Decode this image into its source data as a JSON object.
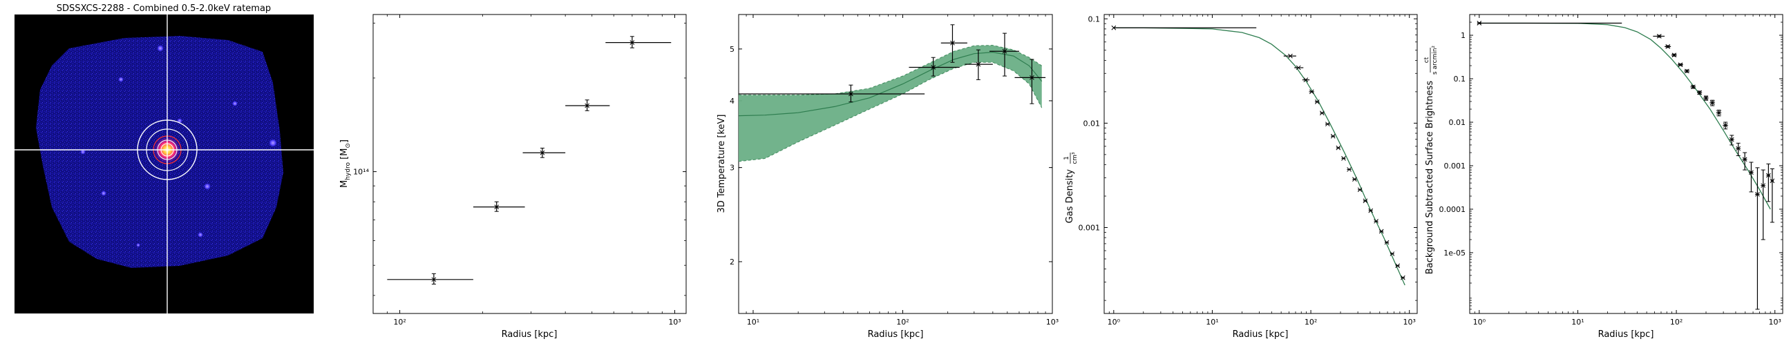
{
  "colors": {
    "band_fill": "#6aaf86",
    "band_edge": "#3f8a5c",
    "model_line": "#2e7d4f",
    "data_marks": "#000000",
    "image_bg": "#000000",
    "image_emission": "#1a18c8",
    "crosshair": "#ffffff"
  },
  "chart_data": [
    {
      "id": "ratemap",
      "type": "image",
      "title": "SDSSXCS-2288 - Combined 0.5-2.0keV ratemap",
      "description_elements": [
        "crosshair",
        "annular regions",
        "bright central source"
      ]
    },
    {
      "id": "mass",
      "type": "scatter",
      "xlabel": "Radius [kpc]",
      "ylabel_main": "M",
      "ylabel_sub": "hydro",
      "ylabel_unit": " [M",
      "ylabel_unit_sub": "⊙",
      "ylabel_end": "]",
      "x_scale": "log",
      "y_scale": "log",
      "xlim": [
        80,
        1100
      ],
      "ylim": [
        35000000000000.0,
        320000000000000.0
      ],
      "x_tick_labels": [
        "10²",
        "10³"
      ],
      "x_ticks": [
        100,
        1000
      ],
      "y_tick_labels": [
        "10¹⁴"
      ],
      "y_ticks": [
        100000000000000.0
      ],
      "points": [
        {
          "x": 133,
          "xlo": 90,
          "xhi": 185,
          "y": 45000000000000.0,
          "ylo": 43500000000000.0,
          "yhi": 47000000000000.0
        },
        {
          "x": 225,
          "xlo": 185,
          "xhi": 285,
          "y": 77000000000000.0,
          "ylo": 74500000000000.0,
          "yhi": 80000000000000.0
        },
        {
          "x": 330,
          "xlo": 280,
          "xhi": 400,
          "y": 115000000000000.0,
          "ylo": 111000000000000.0,
          "yhi": 119000000000000.0
        },
        {
          "x": 480,
          "xlo": 400,
          "xhi": 580,
          "y": 163000000000000.0,
          "ylo": 157000000000000.0,
          "yhi": 170000000000000.0
        },
        {
          "x": 700,
          "xlo": 560,
          "xhi": 970,
          "y": 260000000000000.0,
          "ylo": 250000000000000.0,
          "yhi": 272000000000000.0
        }
      ]
    },
    {
      "id": "temperature",
      "type": "line",
      "xlabel": "Radius [kpc]",
      "ylabel": "3D Temperature [keV]",
      "x_scale": "log",
      "y_scale": "log",
      "xlim": [
        8,
        1000
      ],
      "ylim": [
        1.6,
        5.8
      ],
      "x_tick_labels": [
        "10¹",
        "10²",
        "10³"
      ],
      "x_ticks": [
        10,
        100,
        1000
      ],
      "y_tick_labels": [
        "2",
        "3",
        "4",
        "5"
      ],
      "y_ticks": [
        2,
        3,
        4,
        5
      ],
      "model": {
        "x": [
          8,
          12,
          20,
          35,
          60,
          100,
          150,
          220,
          300,
          400,
          550,
          700,
          850
        ],
        "y": [
          3.75,
          3.76,
          3.8,
          3.9,
          4.05,
          4.3,
          4.55,
          4.78,
          4.9,
          4.93,
          4.85,
          4.65,
          4.35
        ]
      },
      "band_upper": {
        "x": [
          8,
          12,
          20,
          35,
          60,
          100,
          150,
          220,
          300,
          400,
          550,
          700,
          850
        ],
        "y": [
          4.1,
          4.1,
          4.1,
          4.12,
          4.22,
          4.45,
          4.7,
          4.95,
          5.07,
          5.08,
          4.98,
          4.82,
          4.65
        ]
      },
      "band_lower": {
        "x": [
          8,
          12,
          20,
          35,
          60,
          100,
          150,
          220,
          300,
          400,
          550,
          700,
          850
        ],
        "y": [
          3.08,
          3.12,
          3.35,
          3.6,
          3.86,
          4.12,
          4.38,
          4.6,
          4.72,
          4.72,
          4.55,
          4.3,
          3.88
        ]
      },
      "points": [
        {
          "x": 45,
          "xlo": 8,
          "xhi": 140,
          "y": 4.12,
          "ylo": 3.98,
          "yhi": 4.28
        },
        {
          "x": 160,
          "xlo": 110,
          "xhi": 240,
          "y": 4.62,
          "ylo": 4.45,
          "yhi": 4.82
        },
        {
          "x": 215,
          "xlo": 180,
          "xhi": 270,
          "y": 5.13,
          "ylo": 4.72,
          "yhi": 5.55
        },
        {
          "x": 320,
          "xlo": 260,
          "xhi": 400,
          "y": 4.68,
          "ylo": 4.38,
          "yhi": 4.98
        },
        {
          "x": 480,
          "xlo": 380,
          "xhi": 600,
          "y": 4.95,
          "ylo": 4.45,
          "yhi": 5.35
        },
        {
          "x": 730,
          "xlo": 560,
          "xhi": 900,
          "y": 4.42,
          "ylo": 3.95,
          "yhi": 4.78
        }
      ]
    },
    {
      "id": "density",
      "type": "line",
      "xlabel": "Radius [kpc]",
      "ylabel": "Gas Density",
      "ylabel_unit_num": "1",
      "ylabel_unit_den": "cm³",
      "x_scale": "log",
      "y_scale": "log",
      "xlim": [
        0.8,
        1200
      ],
      "ylim": [
        0.00015,
        0.11
      ],
      "x_tick_labels": [
        "10⁰",
        "10¹",
        "10²",
        "10³"
      ],
      "x_ticks": [
        1,
        10,
        100,
        1000
      ],
      "y_tick_labels": [
        "0.1",
        "0.01",
        "0.001"
      ],
      "y_ticks": [
        0.1,
        0.01,
        0.001
      ],
      "model": {
        "x": [
          1,
          2,
          5,
          10,
          20,
          30,
          40,
          55,
          70,
          90,
          120,
          160,
          220,
          300,
          400,
          550,
          700,
          900
        ],
        "y": [
          0.082,
          0.082,
          0.081,
          0.08,
          0.074,
          0.066,
          0.057,
          0.045,
          0.035,
          0.025,
          0.016,
          0.0095,
          0.0052,
          0.0028,
          0.0015,
          0.0008,
          0.00048,
          0.00028
        ]
      },
      "points": [
        {
          "x": 1.0,
          "xlo": 1.0,
          "xhi": 28,
          "y": 0.082
        },
        {
          "x": 62,
          "xlo": 53,
          "xhi": 71,
          "y": 0.044
        },
        {
          "x": 75,
          "xlo": 68,
          "xhi": 84,
          "y": 0.034
        },
        {
          "x": 89,
          "xlo": 82,
          "xhi": 97,
          "y": 0.026
        },
        {
          "x": 102,
          "xlo": 96,
          "xhi": 108,
          "y": 0.02
        },
        {
          "x": 116,
          "xlo": 110,
          "xhi": 122,
          "y": 0.016
        },
        {
          "x": 130,
          "xlo": 124,
          "xhi": 137,
          "y": 0.0125
        },
        {
          "x": 148,
          "xlo": 140,
          "xhi": 156,
          "y": 0.0098
        },
        {
          "x": 168,
          "xlo": 160,
          "xhi": 176,
          "y": 0.0075
        },
        {
          "x": 190,
          "xlo": 181,
          "xhi": 199,
          "y": 0.0058
        },
        {
          "x": 215,
          "xlo": 205,
          "xhi": 225,
          "y": 0.0046
        },
        {
          "x": 245,
          "xlo": 233,
          "xhi": 257,
          "y": 0.0036
        },
        {
          "x": 278,
          "xlo": 265,
          "xhi": 291,
          "y": 0.0029
        },
        {
          "x": 315,
          "xlo": 300,
          "xhi": 330,
          "y": 0.0023
        },
        {
          "x": 357,
          "xlo": 340,
          "xhi": 374,
          "y": 0.0018
        },
        {
          "x": 405,
          "xlo": 386,
          "xhi": 424,
          "y": 0.00145
        },
        {
          "x": 460,
          "xlo": 438,
          "xhi": 482,
          "y": 0.00115
        },
        {
          "x": 520,
          "xlo": 496,
          "xhi": 545,
          "y": 0.00092
        },
        {
          "x": 590,
          "xlo": 562,
          "xhi": 618,
          "y": 0.00072
        },
        {
          "x": 670,
          "xlo": 640,
          "xhi": 700,
          "y": 0.00056
        },
        {
          "x": 760,
          "xlo": 725,
          "xhi": 795,
          "y": 0.00043
        },
        {
          "x": 860,
          "xlo": 820,
          "xhi": 900,
          "y": 0.00033
        }
      ]
    },
    {
      "id": "surface_brightness",
      "type": "line",
      "xlabel": "Radius [kpc]",
      "ylabel": "Background Subtracted Surface Brightness",
      "ylabel_unit_num": "ct",
      "ylabel_unit_den": "s arcmin²",
      "x_scale": "log",
      "y_scale": "log",
      "xlim": [
        0.8,
        1200
      ],
      "ylim": [
        4e-07,
        3.0
      ],
      "x_tick_labels": [
        "10⁰",
        "10¹",
        "10²",
        "10³"
      ],
      "x_ticks": [
        1,
        10,
        100,
        1000
      ],
      "y_tick_labels": [
        "1",
        "0.1",
        "0.01",
        "0.001",
        "0.0001",
        "1e-05"
      ],
      "y_ticks": [
        1,
        0.1,
        0.01,
        0.001,
        0.0001,
        1e-05
      ],
      "model": {
        "x": [
          1,
          3,
          10,
          20,
          30,
          40,
          55,
          70,
          90,
          120,
          160,
          220,
          300,
          400,
          550,
          700,
          900
        ],
        "y": [
          1.9,
          1.9,
          1.88,
          1.75,
          1.5,
          1.2,
          0.8,
          0.5,
          0.28,
          0.13,
          0.055,
          0.02,
          0.0065,
          0.0022,
          0.0007,
          0.00028,
          0.0001
        ]
      },
      "points": [
        {
          "x": 1.0,
          "xlo": 1.0,
          "xhi": 28,
          "y": 1.9,
          "ylo": 1.85,
          "yhi": 1.95
        },
        {
          "x": 67,
          "xlo": 58,
          "xhi": 76,
          "y": 0.95,
          "ylo": 0.9,
          "yhi": 1.0
        },
        {
          "x": 82,
          "xlo": 76,
          "xhi": 88,
          "y": 0.55,
          "ylo": 0.52,
          "yhi": 0.58
        },
        {
          "x": 95,
          "xlo": 89,
          "xhi": 101,
          "y": 0.35,
          "ylo": 0.33,
          "yhi": 0.37
        },
        {
          "x": 110,
          "xlo": 103,
          "xhi": 117,
          "y": 0.21,
          "ylo": 0.2,
          "yhi": 0.22
        },
        {
          "x": 128,
          "xlo": 120,
          "xhi": 136,
          "y": 0.15,
          "ylo": 0.14,
          "yhi": 0.16
        },
        {
          "x": 148,
          "xlo": 139,
          "xhi": 157,
          "y": 0.065,
          "ylo": 0.06,
          "yhi": 0.07
        },
        {
          "x": 172,
          "xlo": 162,
          "xhi": 182,
          "y": 0.048,
          "ylo": 0.044,
          "yhi": 0.052
        },
        {
          "x": 200,
          "xlo": 188,
          "xhi": 212,
          "y": 0.036,
          "ylo": 0.032,
          "yhi": 0.04
        },
        {
          "x": 232,
          "xlo": 218,
          "xhi": 246,
          "y": 0.028,
          "ylo": 0.024,
          "yhi": 0.032
        },
        {
          "x": 270,
          "xlo": 254,
          "xhi": 286,
          "y": 0.0165,
          "ylo": 0.014,
          "yhi": 0.019
        },
        {
          "x": 315,
          "xlo": 296,
          "xhi": 334,
          "y": 0.0085,
          "ylo": 0.007,
          "yhi": 0.01
        },
        {
          "x": 365,
          "xlo": 345,
          "xhi": 385,
          "y": 0.004,
          "ylo": 0.003,
          "yhi": 0.005
        },
        {
          "x": 425,
          "xlo": 402,
          "xhi": 448,
          "y": 0.0025,
          "ylo": 0.0017,
          "yhi": 0.0033
        },
        {
          "x": 495,
          "xlo": 468,
          "xhi": 522,
          "y": 0.0014,
          "ylo": 0.0008,
          "yhi": 0.002
        },
        {
          "x": 575,
          "xlo": 545,
          "xhi": 605,
          "y": 0.0007,
          "ylo": 0.00025,
          "yhi": 0.0012
        },
        {
          "x": 665,
          "xlo": 630,
          "xhi": 700,
          "y": 0.00022,
          "ylo": 5e-07,
          "yhi": 0.0009
        },
        {
          "x": 760,
          "xlo": 720,
          "xhi": 800,
          "y": 0.00035,
          "ylo": 2e-05,
          "yhi": 0.0008
        },
        {
          "x": 860,
          "xlo": 820,
          "xhi": 900,
          "y": 0.0006,
          "ylo": 0.00015,
          "yhi": 0.0011
        },
        {
          "x": 940,
          "xlo": 905,
          "xhi": 975,
          "y": 0.00045,
          "ylo": 5e-05,
          "yhi": 0.00085
        }
      ]
    }
  ]
}
